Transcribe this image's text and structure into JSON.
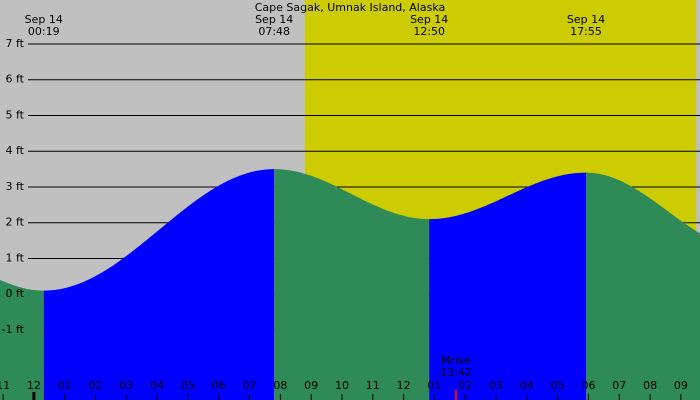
{
  "chart_data": {
    "type": "tide",
    "title": "Cape Sagak, Umnak Island, Alaska",
    "x": [
      -1.1,
      0.32,
      7.8,
      12.83,
      17.92,
      21.62
    ],
    "values": [
      0.4,
      0.1,
      3.5,
      2.1,
      3.4,
      1.7
    ],
    "rising_color": "#0000ff",
    "falling_color": "#2e8b57",
    "night_color": "#c0c0c0",
    "day_color": "#cccc00",
    "daylight": [
      8.8,
      21.5
    ],
    "xlim": [
      -1.1,
      21.62
    ],
    "ylim": [
      -2.96,
      8.23
    ],
    "grid": true,
    "yticks": [
      {
        "value": -1,
        "label": "-1 ft"
      },
      {
        "value": 0,
        "label": "0 ft"
      },
      {
        "value": 1,
        "label": "1 ft"
      },
      {
        "value": 2,
        "label": "2 ft"
      },
      {
        "value": 3,
        "label": "3 ft"
      },
      {
        "value": 4,
        "label": "4 ft"
      },
      {
        "value": 5,
        "label": "5 ft"
      },
      {
        "value": 6,
        "label": "6 ft"
      },
      {
        "value": 7,
        "label": "7 ft"
      }
    ],
    "xticks": [
      {
        "value": -1,
        "label": "11"
      },
      {
        "value": 0,
        "label": "12"
      },
      {
        "value": 1,
        "label": "01"
      },
      {
        "value": 2,
        "label": "02"
      },
      {
        "value": 3,
        "label": "03"
      },
      {
        "value": 4,
        "label": "04"
      },
      {
        "value": 5,
        "label": "05"
      },
      {
        "value": 6,
        "label": "06"
      },
      {
        "value": 7,
        "label": "07"
      },
      {
        "value": 8,
        "label": "08"
      },
      {
        "value": 9,
        "label": "09"
      },
      {
        "value": 10,
        "label": "10"
      },
      {
        "value": 11,
        "label": "11"
      },
      {
        "value": 12,
        "label": "12"
      },
      {
        "value": 13,
        "label": "01"
      },
      {
        "value": 14,
        "label": "02"
      },
      {
        "value": 15,
        "label": "03"
      },
      {
        "value": 16,
        "label": "04"
      },
      {
        "value": 17,
        "label": "05"
      },
      {
        "value": 18,
        "label": "06"
      },
      {
        "value": 19,
        "label": "07"
      },
      {
        "value": 20,
        "label": "08"
      },
      {
        "value": 21,
        "label": "09"
      }
    ],
    "extremes": [
      {
        "x": 0.32,
        "date": "Sep 14",
        "time": "00:19"
      },
      {
        "x": 7.8,
        "date": "Sep 14",
        "time": "07:48"
      },
      {
        "x": 12.83,
        "date": "Sep 14",
        "time": "12:50"
      },
      {
        "x": 17.92,
        "date": "Sep 14",
        "time": "17:55"
      }
    ],
    "moonrise": {
      "x": 13.7,
      "label": "Mrise",
      "time": "13:42",
      "color": "#ff0000"
    },
    "midnight_marker": 0
  }
}
